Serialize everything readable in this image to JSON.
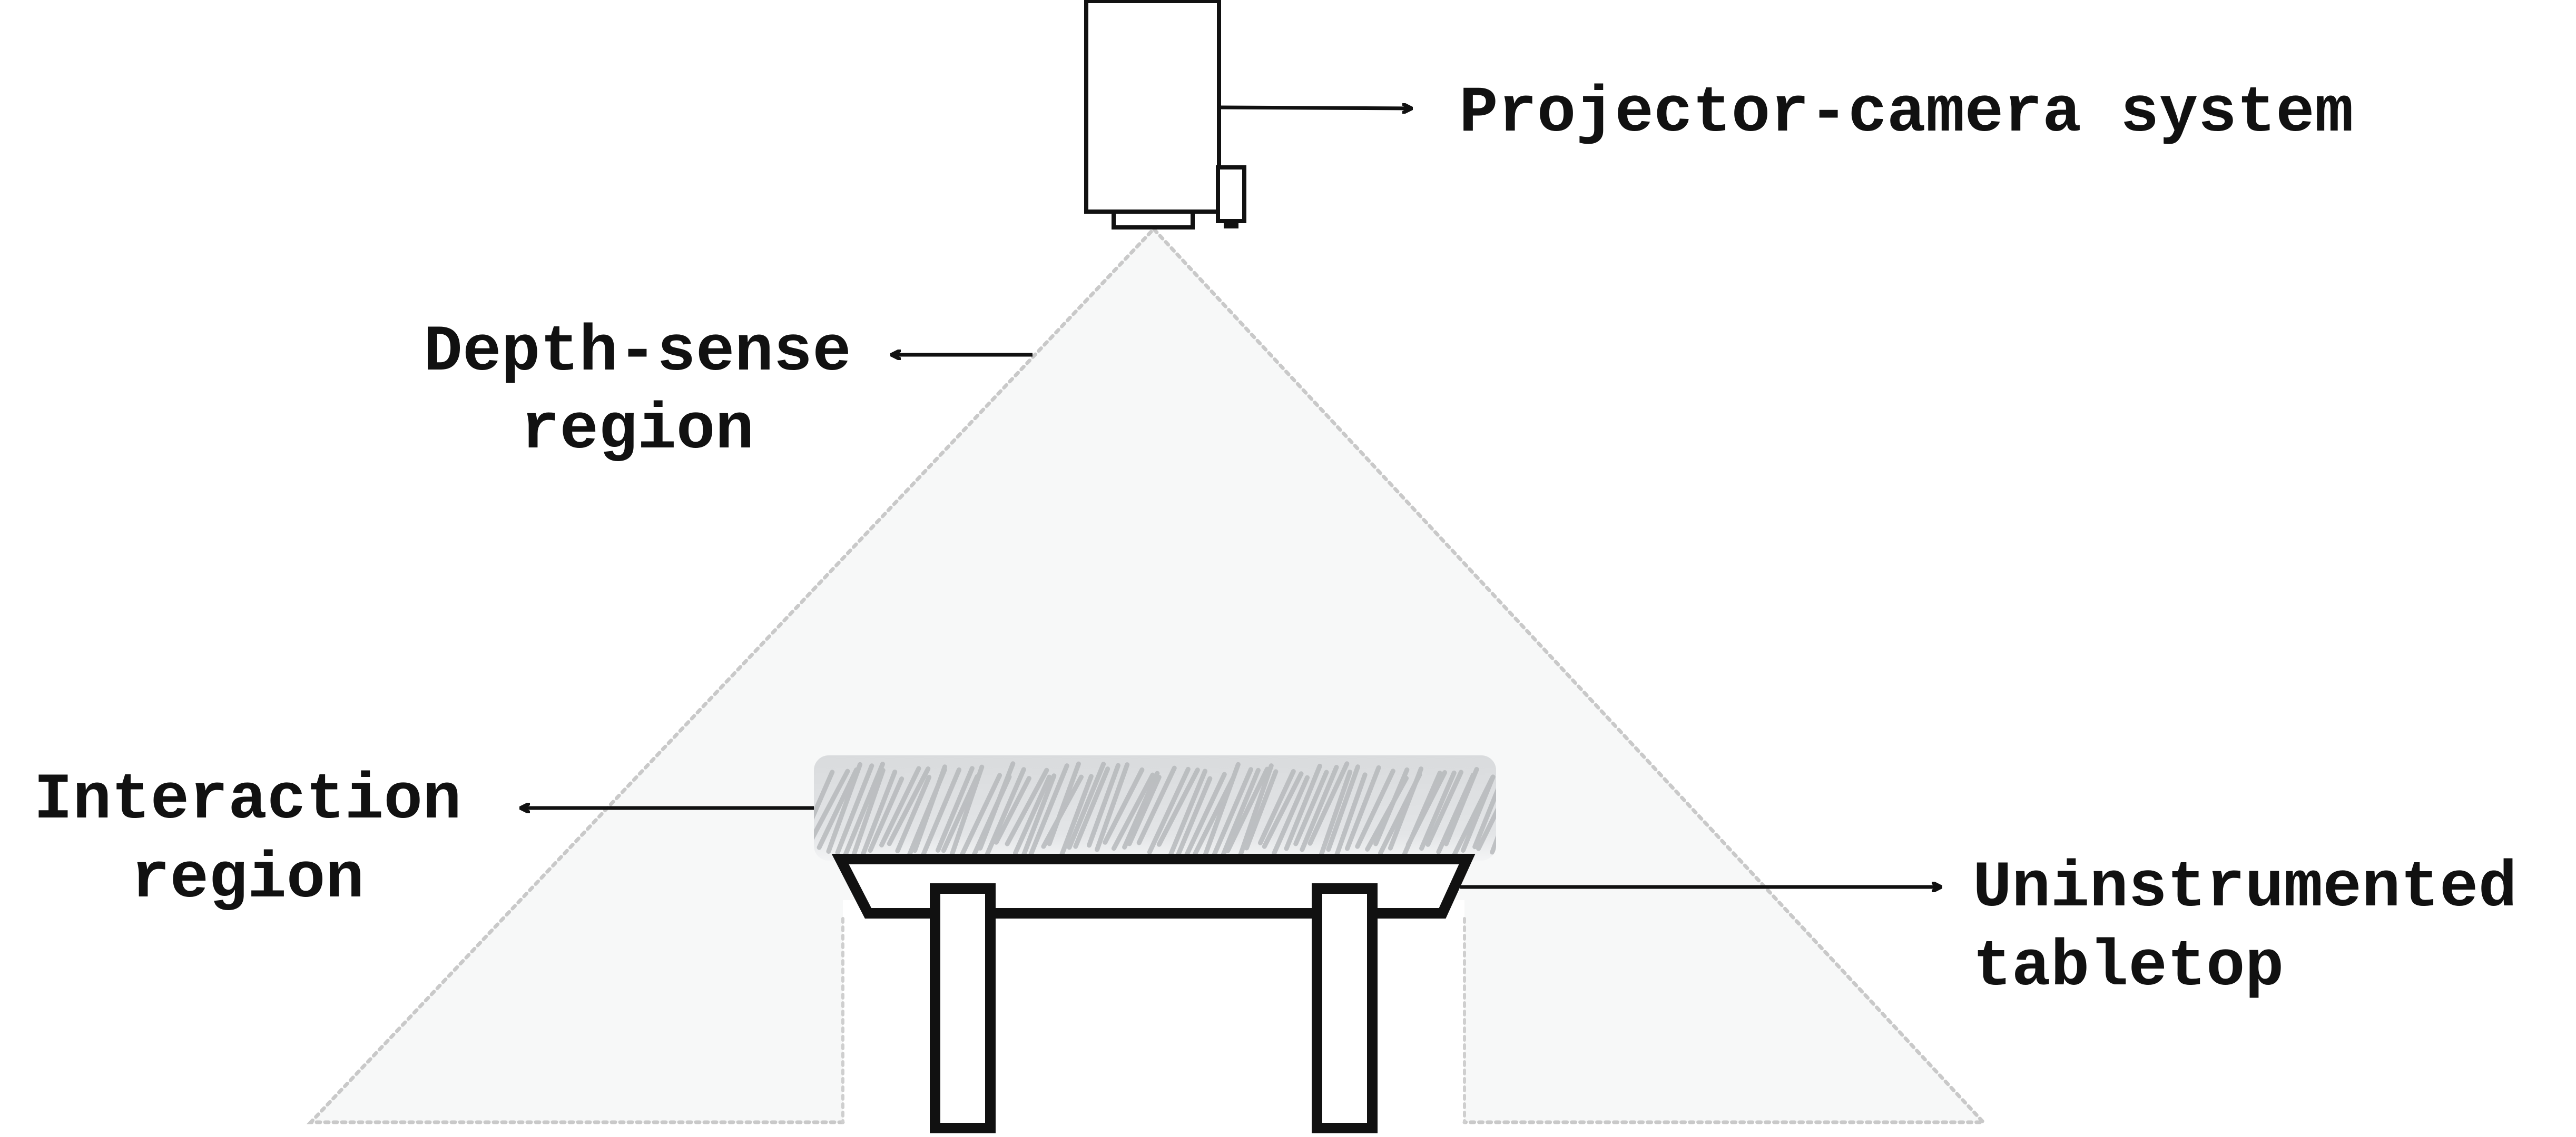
{
  "labels": {
    "projector": "Projector-camera system",
    "depth_line1": "Depth-sense",
    "depth_line2": "region",
    "interaction_line1": "Interaction",
    "interaction_line2": "region",
    "tabletop_line1": "Uninstrumented",
    "tabletop_line2": "tabletop"
  },
  "colors": {
    "ink": "#111111",
    "cone_fill": "#f7f8f8",
    "cone_outline": "#c9c9c9",
    "interaction_fill": "#dfe1e3",
    "hatch": "#b0b3b6"
  }
}
